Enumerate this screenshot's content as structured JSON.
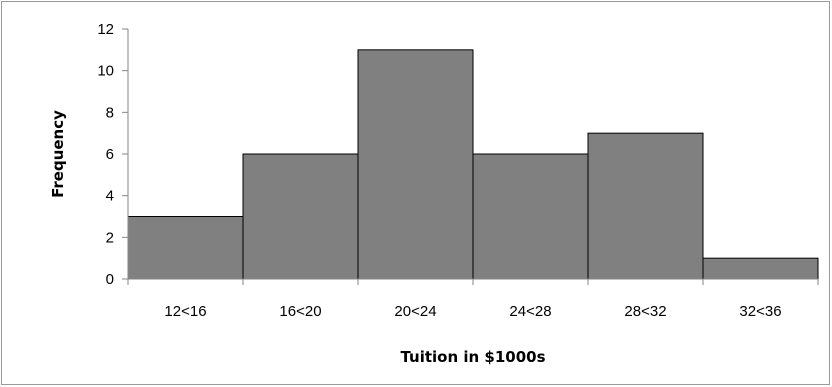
{
  "chart_data": {
    "type": "bar",
    "title": "",
    "xlabel": "Tuition in $1000s",
    "ylabel": "Frequency",
    "categories": [
      "12<16",
      "16<20",
      "20<24",
      "24<28",
      "28<32",
      "32<36"
    ],
    "values": [
      3,
      6,
      11,
      6,
      7,
      1
    ],
    "ylim": [
      0,
      12
    ],
    "yticks": [
      0,
      2,
      4,
      6,
      8,
      10,
      12
    ],
    "grid": false,
    "legend": "none",
    "bar_color": "#808080",
    "bar_edge_color": "#000000",
    "axis_color": "#868686"
  }
}
